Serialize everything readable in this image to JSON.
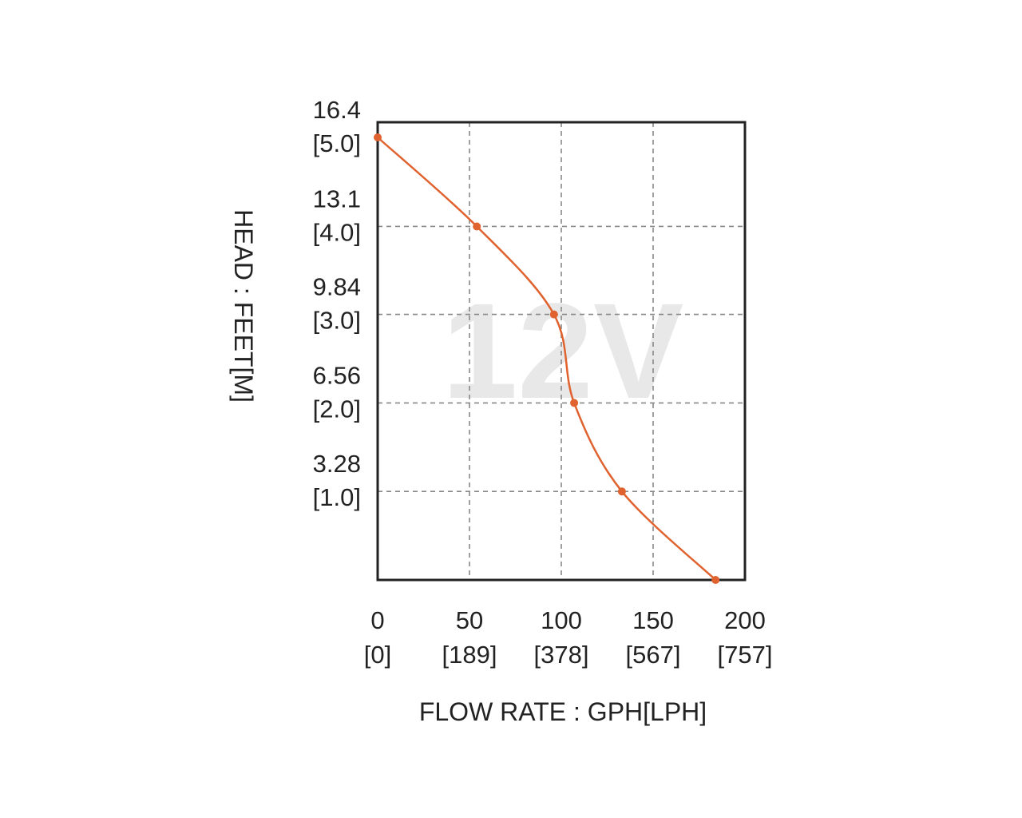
{
  "chart_data": {
    "type": "line",
    "watermark": "12V",
    "xlabel": "FLOW RATE : GPH[LPH]",
    "ylabel": "HEAD : FEET[M]",
    "xlim": [
      0,
      200
    ],
    "ylim": [
      0,
      16.4
    ],
    "grid": true,
    "x_ticks": [
      {
        "value": 0,
        "label": "0",
        "sublabel": "[0]"
      },
      {
        "value": 50,
        "label": "50",
        "sublabel": "[189]"
      },
      {
        "value": 100,
        "label": "100",
        "sublabel": "[378]"
      },
      {
        "value": 150,
        "label": "150",
        "sublabel": "[567]"
      },
      {
        "value": 200,
        "label": "200",
        "sublabel": "[757]"
      }
    ],
    "y_ticks": [
      {
        "value": 16.4,
        "label": "16.4",
        "sublabel": "[5.0]"
      },
      {
        "value": 13.1,
        "label": "13.1",
        "sublabel": "[4.0]"
      },
      {
        "value": 9.84,
        "label": "9.84",
        "sublabel": "[3.0]"
      },
      {
        "value": 6.56,
        "label": "6.56",
        "sublabel": "[2.0]"
      },
      {
        "value": 3.28,
        "label": "3.28",
        "sublabel": "[1.0]"
      }
    ],
    "series": [
      {
        "color": "#e0622e",
        "x": [
          0,
          54,
          96,
          107,
          133,
          184
        ],
        "y": [
          16.4,
          13.1,
          9.84,
          6.56,
          3.28,
          0
        ]
      }
    ]
  }
}
